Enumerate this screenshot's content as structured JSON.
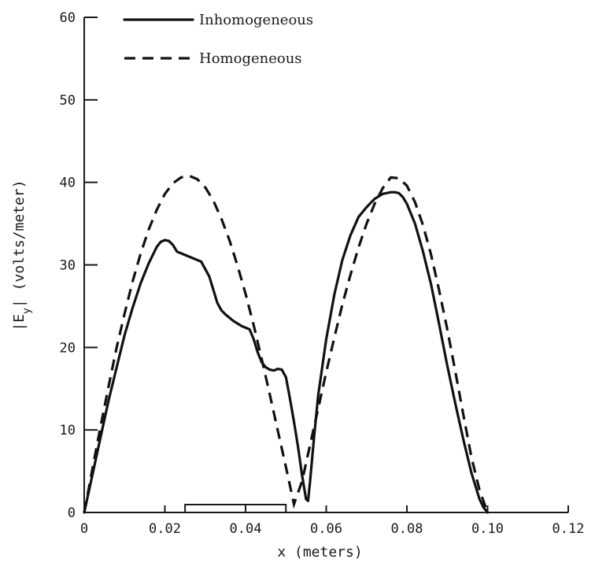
{
  "chart_data": {
    "type": "line",
    "title": "",
    "xlabel": "x (meters)",
    "ylabel_text": "|E",
    "ylabel_sub": "y",
    "ylabel_tail": "| (volts/meter)",
    "xlim": [
      0,
      0.12
    ],
    "ylim": [
      0,
      60
    ],
    "x_ticks": [
      0,
      0.02,
      0.04,
      0.06,
      0.08,
      0.1,
      0.12
    ],
    "x_tick_labels": [
      "0",
      "0.02",
      "0.04",
      "0.06",
      "0.08",
      "0.10",
      "0.12"
    ],
    "y_ticks": [
      0,
      10,
      20,
      30,
      40,
      50,
      60
    ],
    "y_tick_labels": [
      "0",
      "10",
      "20",
      "30",
      "40",
      "50",
      "60"
    ],
    "grid": false,
    "legend_position": "top-left",
    "dielectric_slab": [
      0.025,
      0.05
    ],
    "series": [
      {
        "name": "Inhomogeneous",
        "style": "solid",
        "x": [
          0,
          0.002,
          0.004,
          0.006,
          0.008,
          0.01,
          0.012,
          0.014,
          0.016,
          0.018,
          0.019,
          0.02,
          0.021,
          0.022,
          0.023,
          0.025,
          0.027,
          0.029,
          0.031,
          0.032,
          0.033,
          0.034,
          0.035,
          0.036,
          0.037,
          0.039,
          0.041,
          0.042,
          0.043,
          0.044,
          0.045,
          0.046,
          0.047,
          0.048,
          0.049,
          0.05,
          0.051,
          0.052,
          0.053,
          0.054,
          0.055,
          0.0555,
          0.056,
          0.057,
          0.058,
          0.06,
          0.062,
          0.064,
          0.066,
          0.068,
          0.07,
          0.072,
          0.074,
          0.076,
          0.077,
          0.078,
          0.079,
          0.08,
          0.082,
          0.084,
          0.086,
          0.088,
          0.09,
          0.092,
          0.094,
          0.096,
          0.098,
          0.099,
          0.1
        ],
        "y": [
          0,
          4.5,
          9,
          13.5,
          17.5,
          21.5,
          24.8,
          27.8,
          30.2,
          32.2,
          32.8,
          33.0,
          32.9,
          32.4,
          31.6,
          31.2,
          30.8,
          30.4,
          28.6,
          27.0,
          25.4,
          24.5,
          24.0,
          23.6,
          23.2,
          22.6,
          22.2,
          21.0,
          19.4,
          18.2,
          17.6,
          17.3,
          17.2,
          17.4,
          17.3,
          16.4,
          13.8,
          11.0,
          8.0,
          4.5,
          1.6,
          1.4,
          3.8,
          9.2,
          14.2,
          21.0,
          26.4,
          30.6,
          33.6,
          35.8,
          37.0,
          38.0,
          38.6,
          38.8,
          38.8,
          38.7,
          38.2,
          37.4,
          35.0,
          31.6,
          27.6,
          22.8,
          17.8,
          13.2,
          8.8,
          4.8,
          1.6,
          0.6,
          0
        ]
      },
      {
        "name": "Homogeneous",
        "style": "dashed",
        "x": [
          0,
          0.002,
          0.004,
          0.006,
          0.008,
          0.01,
          0.012,
          0.014,
          0.016,
          0.018,
          0.02,
          0.022,
          0.024,
          0.026,
          0.028,
          0.03,
          0.032,
          0.034,
          0.036,
          0.038,
          0.04,
          0.042,
          0.044,
          0.046,
          0.048,
          0.05,
          0.052,
          0.054,
          0.056,
          0.058,
          0.06,
          0.062,
          0.064,
          0.066,
          0.068,
          0.07,
          0.072,
          0.074,
          0.076,
          0.078,
          0.08,
          0.082,
          0.084,
          0.086,
          0.088,
          0.09,
          0.092,
          0.094,
          0.096,
          0.098,
          0.1
        ],
        "y": [
          0,
          5.2,
          10.3,
          15.2,
          19.9,
          24.1,
          28.0,
          31.4,
          34.3,
          36.7,
          38.6,
          39.9,
          40.6,
          40.8,
          40.4,
          39.4,
          37.8,
          35.6,
          33.0,
          29.9,
          26.5,
          22.7,
          18.6,
          14.3,
          9.9,
          5.5,
          1.0,
          3.8,
          8.2,
          12.6,
          17.0,
          21.2,
          25.2,
          28.8,
          32.1,
          35.0,
          37.4,
          39.3,
          40.6,
          40.5,
          39.6,
          37.6,
          34.8,
          31.2,
          26.9,
          22.2,
          17.1,
          11.8,
          6.7,
          2.7,
          0
        ]
      }
    ]
  }
}
